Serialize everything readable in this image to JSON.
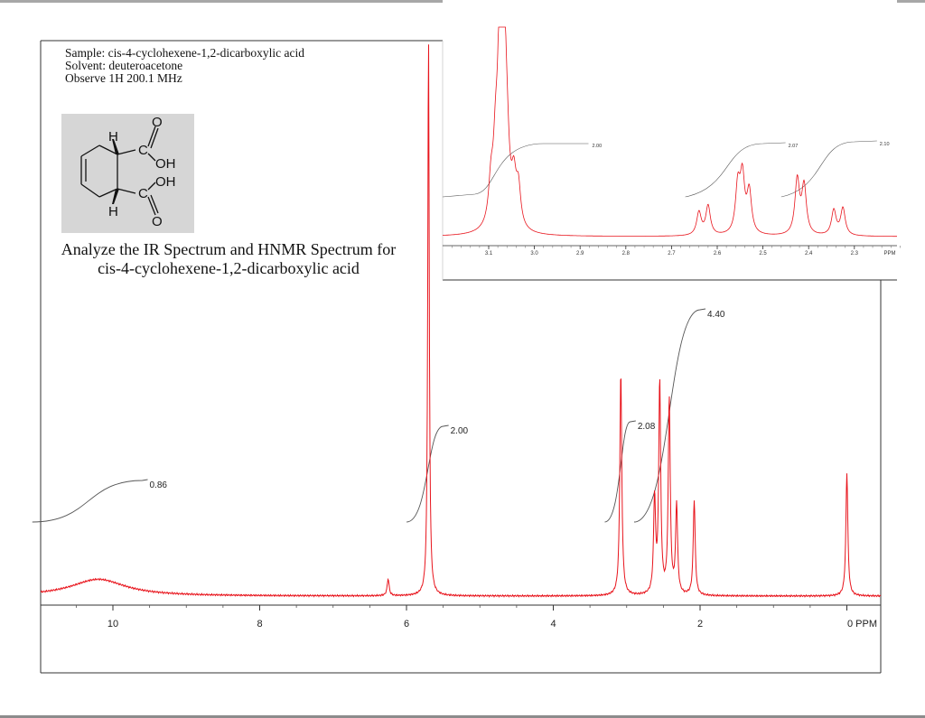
{
  "header": {
    "sample": "Sample: cis-4-cyclohexene-1,2-dicarboxylic acid",
    "solvent": "Solvent: deuteroacetone",
    "observe": "Observe 1H 200.1 MHz"
  },
  "structure": {
    "atom_labels": [
      "H",
      "H",
      "O",
      "C",
      "OH",
      "OH",
      "C",
      "O"
    ]
  },
  "instructions": {
    "line1": "Analyze the IR Spectrum and HNMR Spectrum for",
    "line2": "cis-4-cyclohexene-1,2-dicarboxylic acid"
  },
  "chart_data": [
    {
      "type": "line",
      "title": "",
      "xlabel": "PPM",
      "ylabel": "",
      "x_direction": "decreasing",
      "xlim": [
        11.0,
        0.0
      ],
      "x_ticks": [
        10,
        8,
        6,
        4,
        2,
        0
      ],
      "x_tick_labels": [
        "10",
        "8",
        "6",
        "4",
        "2",
        "0 PPM"
      ],
      "grid": false,
      "series": [
        {
          "peaks": [
            {
              "ppm": 10.2,
              "relative_height": 0.03,
              "shape": "broad"
            },
            {
              "ppm": 6.25,
              "relative_height": 0.03
            },
            {
              "ppm": 5.7,
              "relative_height": 1.0
            },
            {
              "ppm": 3.08,
              "relative_height": 0.4
            },
            {
              "ppm": 2.62,
              "relative_height": 0.17
            },
            {
              "ppm": 2.55,
              "relative_height": 0.38
            },
            {
              "ppm": 2.42,
              "relative_height": 0.35
            },
            {
              "ppm": 2.32,
              "relative_height": 0.16
            },
            {
              "ppm": 2.08,
              "relative_height": 0.17
            },
            {
              "ppm": 0.0,
              "relative_height": 0.22
            }
          ]
        }
      ],
      "integrals": [
        {
          "label": "0.86",
          "from_ppm": 11.0,
          "to_ppm": 9.6,
          "value": 0.86
        },
        {
          "label": "2.00",
          "from_ppm": 5.9,
          "to_ppm": 5.5,
          "value": 2.0
        },
        {
          "label": "2.08",
          "from_ppm": 3.2,
          "to_ppm": 2.95,
          "value": 2.08
        },
        {
          "label": "4.40",
          "from_ppm": 2.8,
          "to_ppm": 2.0,
          "value": 4.4
        }
      ]
    },
    {
      "type": "line",
      "title": "",
      "xlabel": "PPM",
      "ylabel": "",
      "x_direction": "decreasing",
      "xlim": [
        3.2,
        2.18
      ],
      "x_ticks": [
        3.1,
        3.0,
        2.9,
        2.8,
        2.7,
        2.6,
        2.5,
        2.4,
        2.3
      ],
      "x_tick_labels": [
        "3.1",
        "3.0",
        "2.9",
        "2.8",
        "2.7",
        "2.6",
        "2.5",
        "2.4",
        "2.3"
      ],
      "grid": false,
      "series": [
        {
          "peaks": [
            {
              "ppm": 3.095,
              "relative_height": 0.18
            },
            {
              "ppm": 3.085,
              "relative_height": 0.28
            },
            {
              "ppm": 3.075,
              "relative_height": 0.8
            },
            {
              "ppm": 3.068,
              "relative_height": 1.0
            },
            {
              "ppm": 3.06,
              "relative_height": 0.25
            },
            {
              "ppm": 3.045,
              "relative_height": 0.2
            },
            {
              "ppm": 3.035,
              "relative_height": 0.18
            },
            {
              "ppm": 2.64,
              "relative_height": 0.11
            },
            {
              "ppm": 2.62,
              "relative_height": 0.14
            },
            {
              "ppm": 2.555,
              "relative_height": 0.22
            },
            {
              "ppm": 2.545,
              "relative_height": 0.26
            },
            {
              "ppm": 2.53,
              "relative_height": 0.2
            },
            {
              "ppm": 2.425,
              "relative_height": 0.26
            },
            {
              "ppm": 2.41,
              "relative_height": 0.23
            },
            {
              "ppm": 2.345,
              "relative_height": 0.12
            },
            {
              "ppm": 2.325,
              "relative_height": 0.13
            }
          ]
        }
      ],
      "integrals": [
        {
          "label": "2.00",
          "from_ppm": 3.13,
          "to_ppm": 3.02,
          "value": 2.0
        },
        {
          "label": "2.07",
          "from_ppm": 2.67,
          "to_ppm": 2.5,
          "value": 2.07
        },
        {
          "label": "2.10",
          "from_ppm": 2.46,
          "to_ppm": 2.3,
          "value": 2.1
        }
      ]
    }
  ]
}
